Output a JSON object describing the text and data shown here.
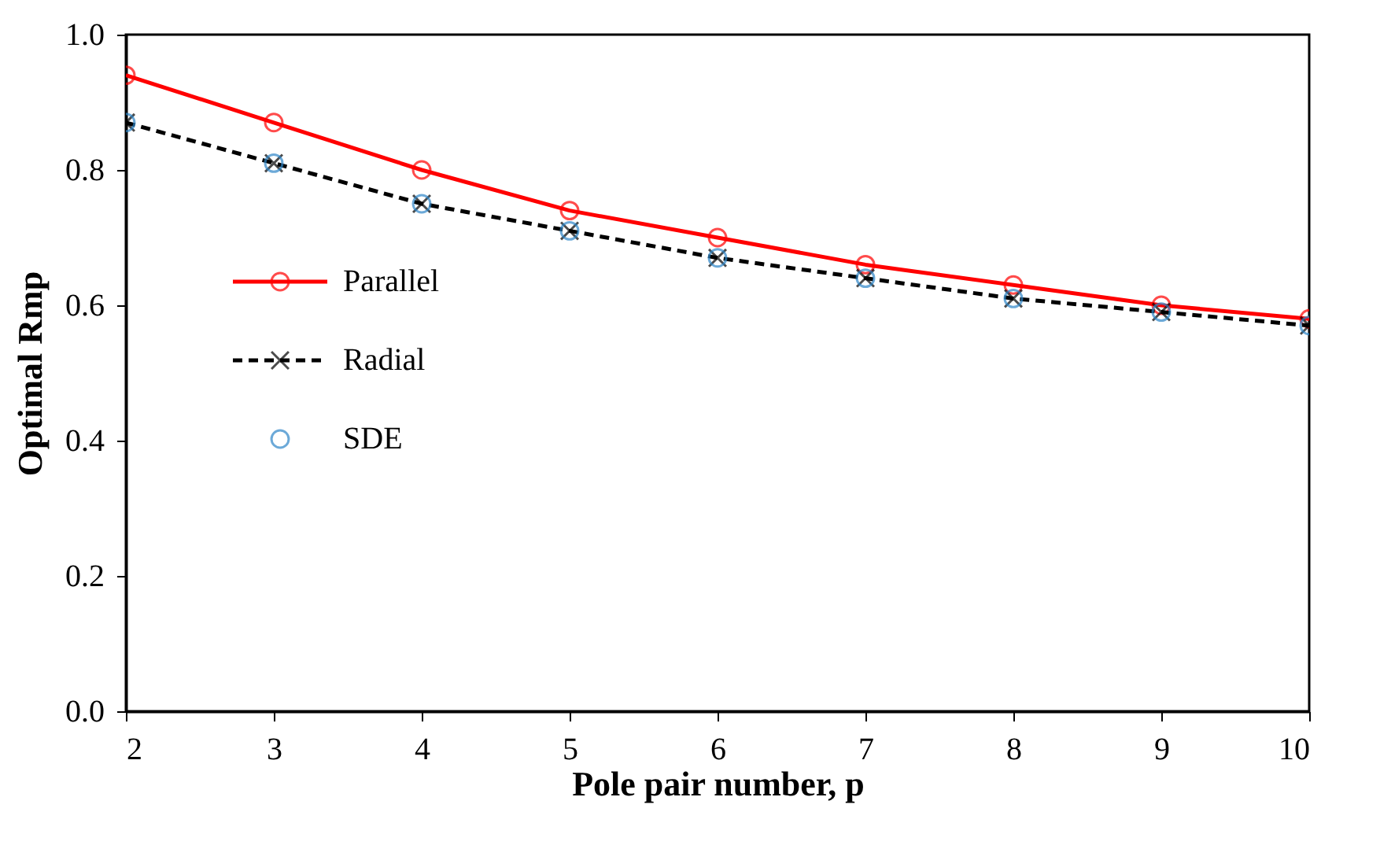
{
  "chart_data": {
    "type": "line",
    "xlabel": "Pole pair number, p",
    "ylabel": "Optimal Rmp",
    "x": [
      2,
      3,
      4,
      5,
      6,
      7,
      8,
      9,
      10
    ],
    "series": [
      {
        "name": "Parallel",
        "color": "#ff0000",
        "marker": "circle",
        "line_style": "solid",
        "values": [
          0.94,
          0.87,
          0.8,
          0.74,
          0.7,
          0.66,
          0.63,
          0.6,
          0.58
        ]
      },
      {
        "name": "Radial",
        "color": "#000000",
        "marker": "cross",
        "line_style": "dashed",
        "values": [
          0.87,
          0.81,
          0.75,
          0.71,
          0.67,
          0.64,
          0.61,
          0.59,
          0.57
        ]
      },
      {
        "name": "SDE",
        "type": "scatter",
        "color": "#2e86c8",
        "marker": "circle",
        "values": [
          0.87,
          0.81,
          0.75,
          0.71,
          0.67,
          0.64,
          0.61,
          0.59,
          0.57
        ]
      }
    ],
    "xlim": [
      2,
      10
    ],
    "xticks": [
      2,
      3,
      4,
      5,
      6,
      7,
      8,
      9,
      10
    ],
    "ylim": [
      0,
      1.0
    ],
    "yticks": [
      {
        "value": 0,
        "label": "0.0"
      },
      {
        "value": 0.2,
        "label": "0.2"
      },
      {
        "value": 0.4,
        "label": "0.4"
      },
      {
        "value": 0.6,
        "label": "0.6"
      },
      {
        "value": 0.8,
        "label": "0.8"
      },
      {
        "value": 1.0,
        "label": "1.0"
      }
    ],
    "grid": false,
    "legend": "left"
  }
}
